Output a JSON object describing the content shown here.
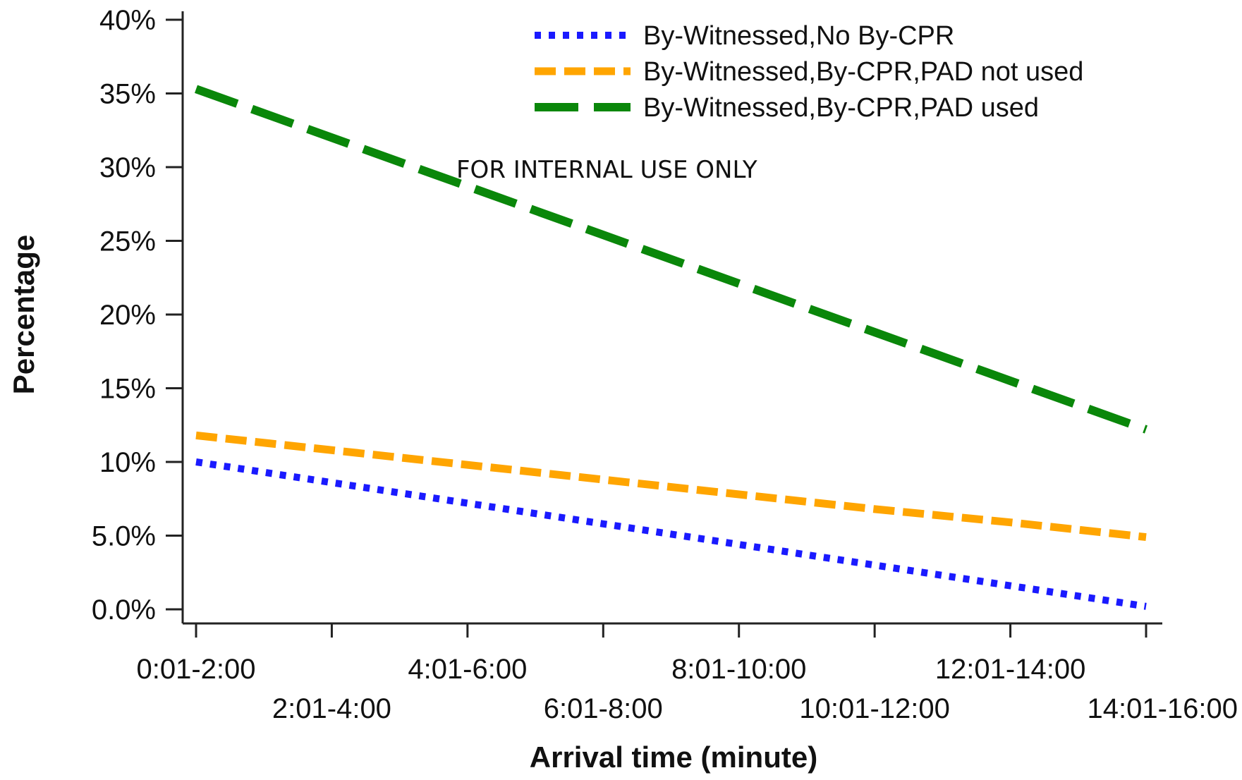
{
  "chart_data": {
    "type": "line",
    "categories": [
      "0:01-2:00",
      "2:01-4:00",
      "4:01-6:00",
      "6:01-8:00",
      "8:01-10:00",
      "10:01-12:00",
      "12:01-14:00",
      "14:01-16:00"
    ],
    "series": [
      {
        "name": "By-Witnessed,No By-CPR",
        "color": "#1a1aff",
        "style": "dotted",
        "values": [
          10.0,
          8.6,
          7.2,
          5.8,
          4.4,
          3.0,
          1.6,
          0.2
        ]
      },
      {
        "name": "By-Witnessed,By-CPR,PAD not used",
        "color": "#ffa500",
        "style": "dashed",
        "values": [
          11.8,
          10.8,
          9.8,
          8.8,
          7.8,
          6.8,
          5.9,
          4.9
        ]
      },
      {
        "name": "By-Witnessed,By-CPR,PAD used",
        "color": "#0a870a",
        "style": "long-dashed",
        "values": [
          35.3,
          32.0,
          28.7,
          25.4,
          22.1,
          18.8,
          15.5,
          12.2
        ]
      }
    ],
    "yticks": [
      {
        "value": 0,
        "label": "0.0%"
      },
      {
        "value": 5,
        "label": "5.0%"
      },
      {
        "value": 10,
        "label": "10%"
      },
      {
        "value": 15,
        "label": "15%"
      },
      {
        "value": 20,
        "label": "20%"
      },
      {
        "value": 25,
        "label": "25%"
      },
      {
        "value": 30,
        "label": "30%"
      },
      {
        "value": 35,
        "label": "35%"
      },
      {
        "value": 40,
        "label": "40%"
      }
    ],
    "ylim": [
      0,
      40
    ],
    "xlabel": "Arrival time (minute)",
    "ylabel": "Percentage",
    "legend_position": "top-right",
    "grid": false
  },
  "watermark": "FOR INTERNAL USE ONLY"
}
